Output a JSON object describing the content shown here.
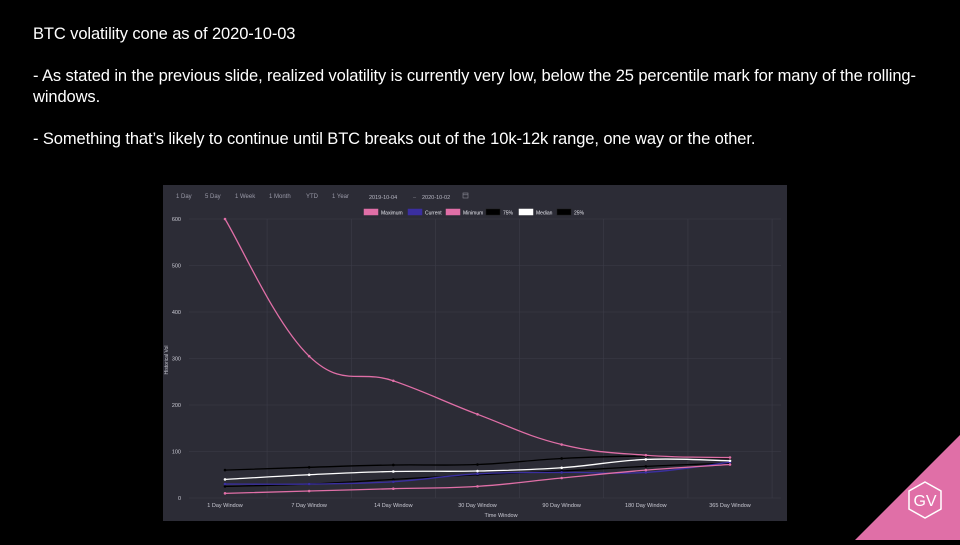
{
  "slide": {
    "title": "BTC volatility cone as of 2020-10-03",
    "bullet_1": "- As stated in the previous slide, realized volatility is currently very low, below the 25 percentile mark for many of the rolling-windows.",
    "bullet_2": "- Something that’s likely to continue until BTC breaks out of the 10k-12k range, one way or the other."
  },
  "toolbar": {
    "ranges": [
      "1 Day",
      "5 Day",
      "1 Week",
      "1 Month",
      "YTD",
      "1 Year"
    ],
    "date_from": "2019-10-04",
    "date_separator": "–",
    "date_to": "2020-10-02"
  },
  "logo": {
    "text": "GV",
    "color": "#e06fa7"
  },
  "chart_data": {
    "type": "line",
    "categories": [
      "1 Day Window",
      "7 Day Window",
      "14 Day Window",
      "30 Day Window",
      "90 Day Window",
      "180 Day Window",
      "365 Day Window"
    ],
    "xlabel": "Time Window",
    "ylabel": "Historical Vol",
    "ylim": [
      0,
      600
    ],
    "yticks": [
      0,
      100,
      200,
      300,
      400,
      500,
      600
    ],
    "grid": true,
    "legend_position": "top",
    "series": [
      {
        "name": "Maximum",
        "color": "#e06fa7",
        "values": [
          600,
          305,
          252,
          180,
          115,
          92,
          87
        ]
      },
      {
        "name": "Current",
        "color": "#3a2fa0",
        "values": [
          30,
          30,
          35,
          52,
          55,
          55,
          77
        ]
      },
      {
        "name": "Minimum",
        "color": "#e06fa7",
        "values": [
          10,
          15,
          20,
          25,
          43,
          60,
          72
        ]
      },
      {
        "name": "75%",
        "color": "#000000",
        "values": [
          60,
          66,
          71,
          72,
          85,
          90,
          85
        ]
      },
      {
        "name": "Median",
        "color": "#ffffff",
        "values": [
          40,
          50,
          57,
          58,
          65,
          83,
          80
        ]
      },
      {
        "name": "25%",
        "color": "#000000",
        "values": [
          25,
          30,
          40,
          50,
          58,
          68,
          75
        ]
      }
    ]
  }
}
